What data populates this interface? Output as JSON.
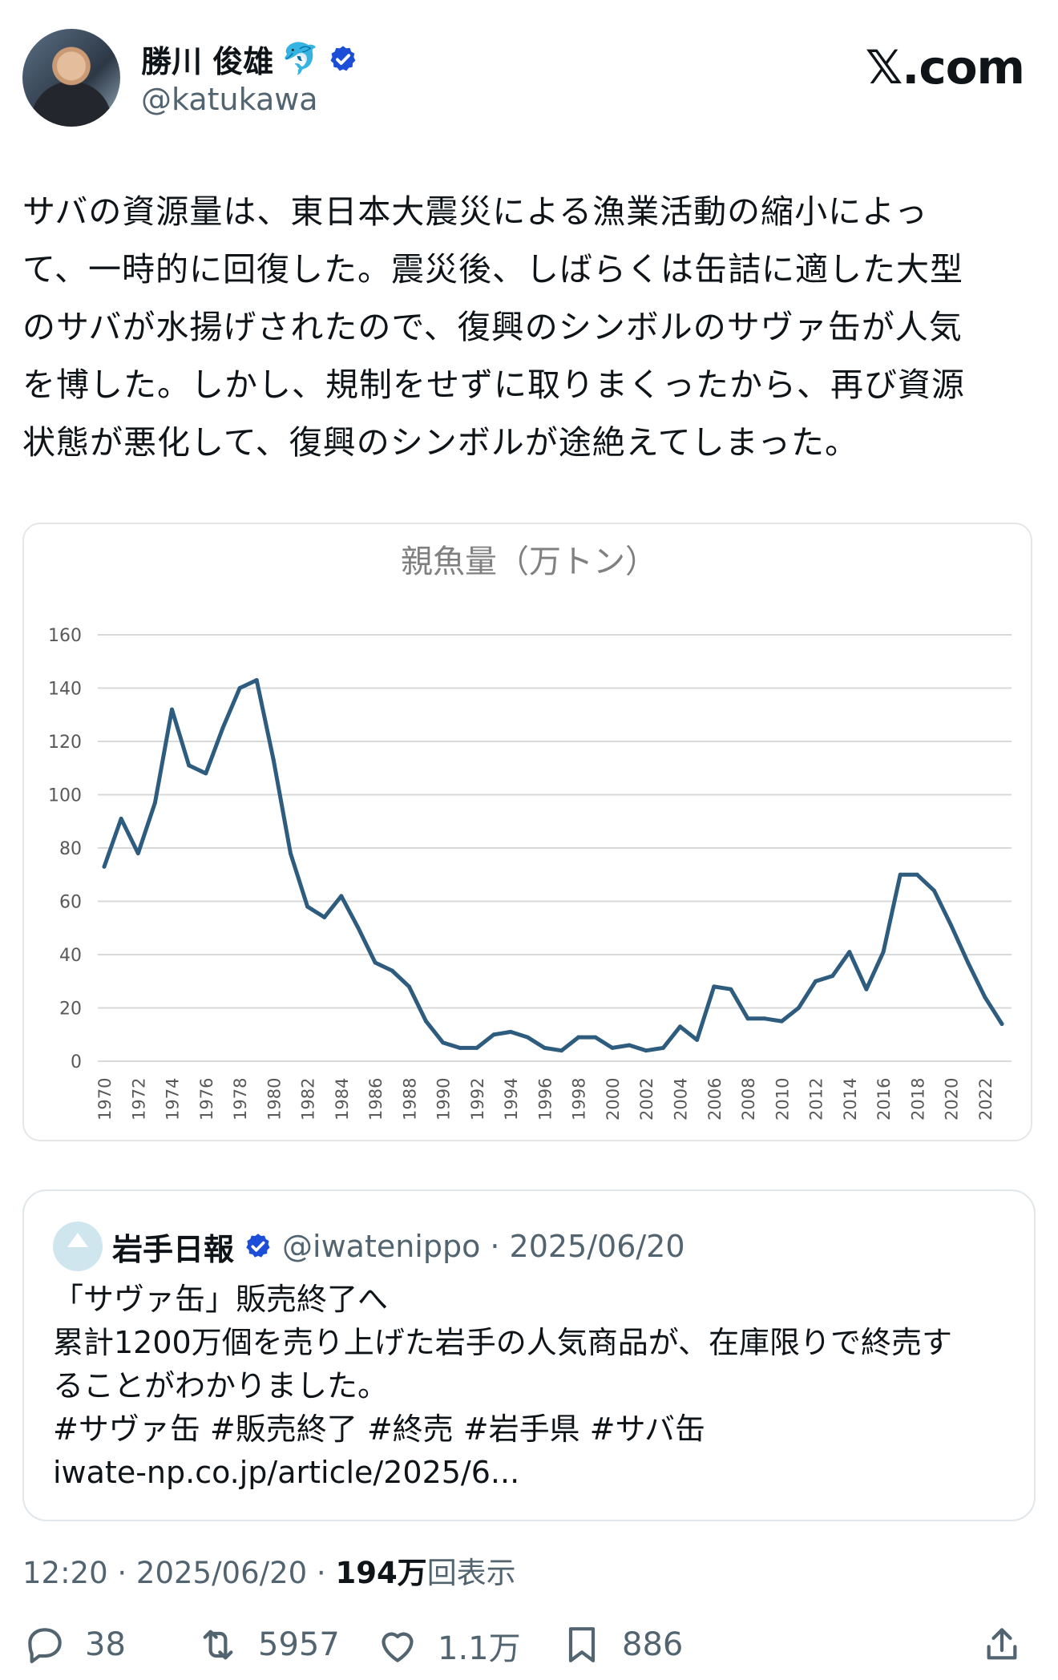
{
  "author": {
    "name": "勝川 俊雄",
    "emoji": "🐬",
    "handle": "@katukawa"
  },
  "brand": "𝕏.com",
  "tweet": {
    "lines": [
      "サバの資源量は、東日本大震災による漁業活動の縮小によっ",
      "て、一時的に回復した。震災後、しばらくは缶詰に適した大型",
      "のサバが水揚げされたので、復興のシンボルのサヴァ缶が人気",
      "を博した。しかし、規制をせずに取りまくったから、再び資源",
      "状態が悪化して、復興のシンボルが途絶えてしまった。"
    ]
  },
  "chart_data": {
    "type": "line",
    "title": "親魚量（万トン）",
    "ylim": [
      0,
      160
    ],
    "yticks": [
      "0",
      "20",
      "40",
      "60",
      "80",
      "100",
      "120",
      "140",
      "160"
    ],
    "xticks": [
      "1970",
      "1972",
      "1974",
      "1976",
      "1978",
      "1980",
      "1982",
      "1984",
      "1986",
      "1988",
      "1990",
      "1992",
      "1994",
      "1996",
      "1998",
      "2000",
      "2002",
      "2004",
      "2006",
      "2008",
      "2010",
      "2012",
      "2014",
      "2016",
      "2018",
      "2020",
      "2022"
    ],
    "grid": true,
    "color": "#2e5c7e",
    "x": [
      1970,
      1971,
      1972,
      1973,
      1974,
      1975,
      1976,
      1977,
      1978,
      1979,
      1980,
      1981,
      1982,
      1983,
      1984,
      1985,
      1986,
      1987,
      1988,
      1989,
      1990,
      1991,
      1992,
      1993,
      1994,
      1995,
      1996,
      1997,
      1998,
      1999,
      2000,
      2001,
      2002,
      2003,
      2004,
      2005,
      2006,
      2007,
      2008,
      2009,
      2010,
      2011,
      2012,
      2013,
      2014,
      2015,
      2016,
      2017,
      2018,
      2019,
      2020,
      2021,
      2022,
      2023
    ],
    "values": [
      73,
      91,
      78,
      97,
      132,
      111,
      108,
      125,
      140,
      143,
      113,
      78,
      58,
      54,
      62,
      50,
      37,
      34,
      28,
      15,
      7,
      5,
      5,
      10,
      11,
      9,
      5,
      4,
      9,
      9,
      5,
      6,
      4,
      5,
      13,
      8,
      28,
      27,
      16,
      16,
      15,
      20,
      30,
      32,
      41,
      27,
      41,
      70,
      70,
      64,
      51,
      37,
      24,
      14
    ]
  },
  "quote": {
    "name": "岩手日報",
    "handle": "@iwatenippo",
    "date": "· 2025/06/20",
    "lines": [
      "「サヴァ缶」販売終了へ",
      "累計1200万個を売り上げた岩手の人気商品が、在庫限りで終売す",
      "ることがわかりました。",
      "#サヴァ缶 #販売終了 #終売  #岩手県 #サバ缶",
      "iwate-np.co.jp/article/2025/6..."
    ]
  },
  "meta": {
    "time": "12:20 · 2025/06/20 · ",
    "views": "194万",
    "views_label": "回表示"
  },
  "actions": {
    "replies": "38",
    "reposts": "5957",
    "likes": "1.1万",
    "bookmarks": "886"
  },
  "colors": {
    "verified": "#1d4ed8",
    "line": "#2e5c7e",
    "grid": "#d9d9d9",
    "muted": "#536471"
  }
}
